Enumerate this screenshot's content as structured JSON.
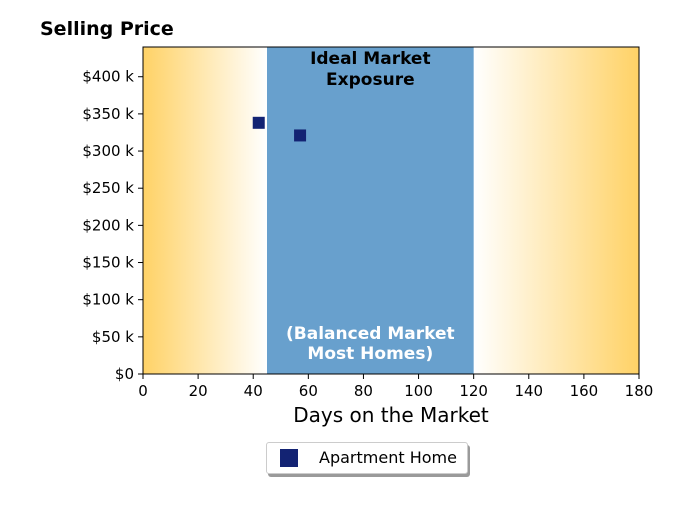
{
  "colors": {
    "edge": "#ffd266",
    "center": "#ffffff",
    "zone": "#68a0cd",
    "marker": "#132373"
  },
  "chart_data": {
    "type": "scatter",
    "title": "Selling Price",
    "xlabel": "Days on the Market",
    "ylabel": "",
    "xlim": [
      0,
      180
    ],
    "ylim": [
      0,
      440000
    ],
    "xticks": [
      0,
      20,
      40,
      60,
      80,
      100,
      120,
      140,
      160,
      180
    ],
    "xtick_labels": [
      "0",
      "20",
      "40",
      "60",
      "80",
      "100",
      "120",
      "140",
      "160",
      "180"
    ],
    "yticks": [
      0,
      50000,
      100000,
      150000,
      200000,
      250000,
      300000,
      350000,
      400000
    ],
    "ytick_labels": [
      "$0",
      "$50 k",
      "$100 k",
      "$150 k",
      "$200 k",
      "$250 k",
      "$300 k",
      "$350 k",
      "$400 k"
    ],
    "zone": {
      "x_range": [
        45,
        120
      ],
      "title_lines": [
        "Ideal Market",
        "Exposure"
      ],
      "subtitle_lines": [
        "(Balanced Market",
        "Most Homes)"
      ]
    },
    "series": [
      {
        "name": "Apartment Home",
        "marker": "square",
        "points": [
          {
            "x": 42,
            "y": 338000
          },
          {
            "x": 57,
            "y": 321000
          }
        ]
      }
    ],
    "legend": {
      "placement": "bottom-center",
      "label": "Apartment Home"
    },
    "grid": false
  }
}
